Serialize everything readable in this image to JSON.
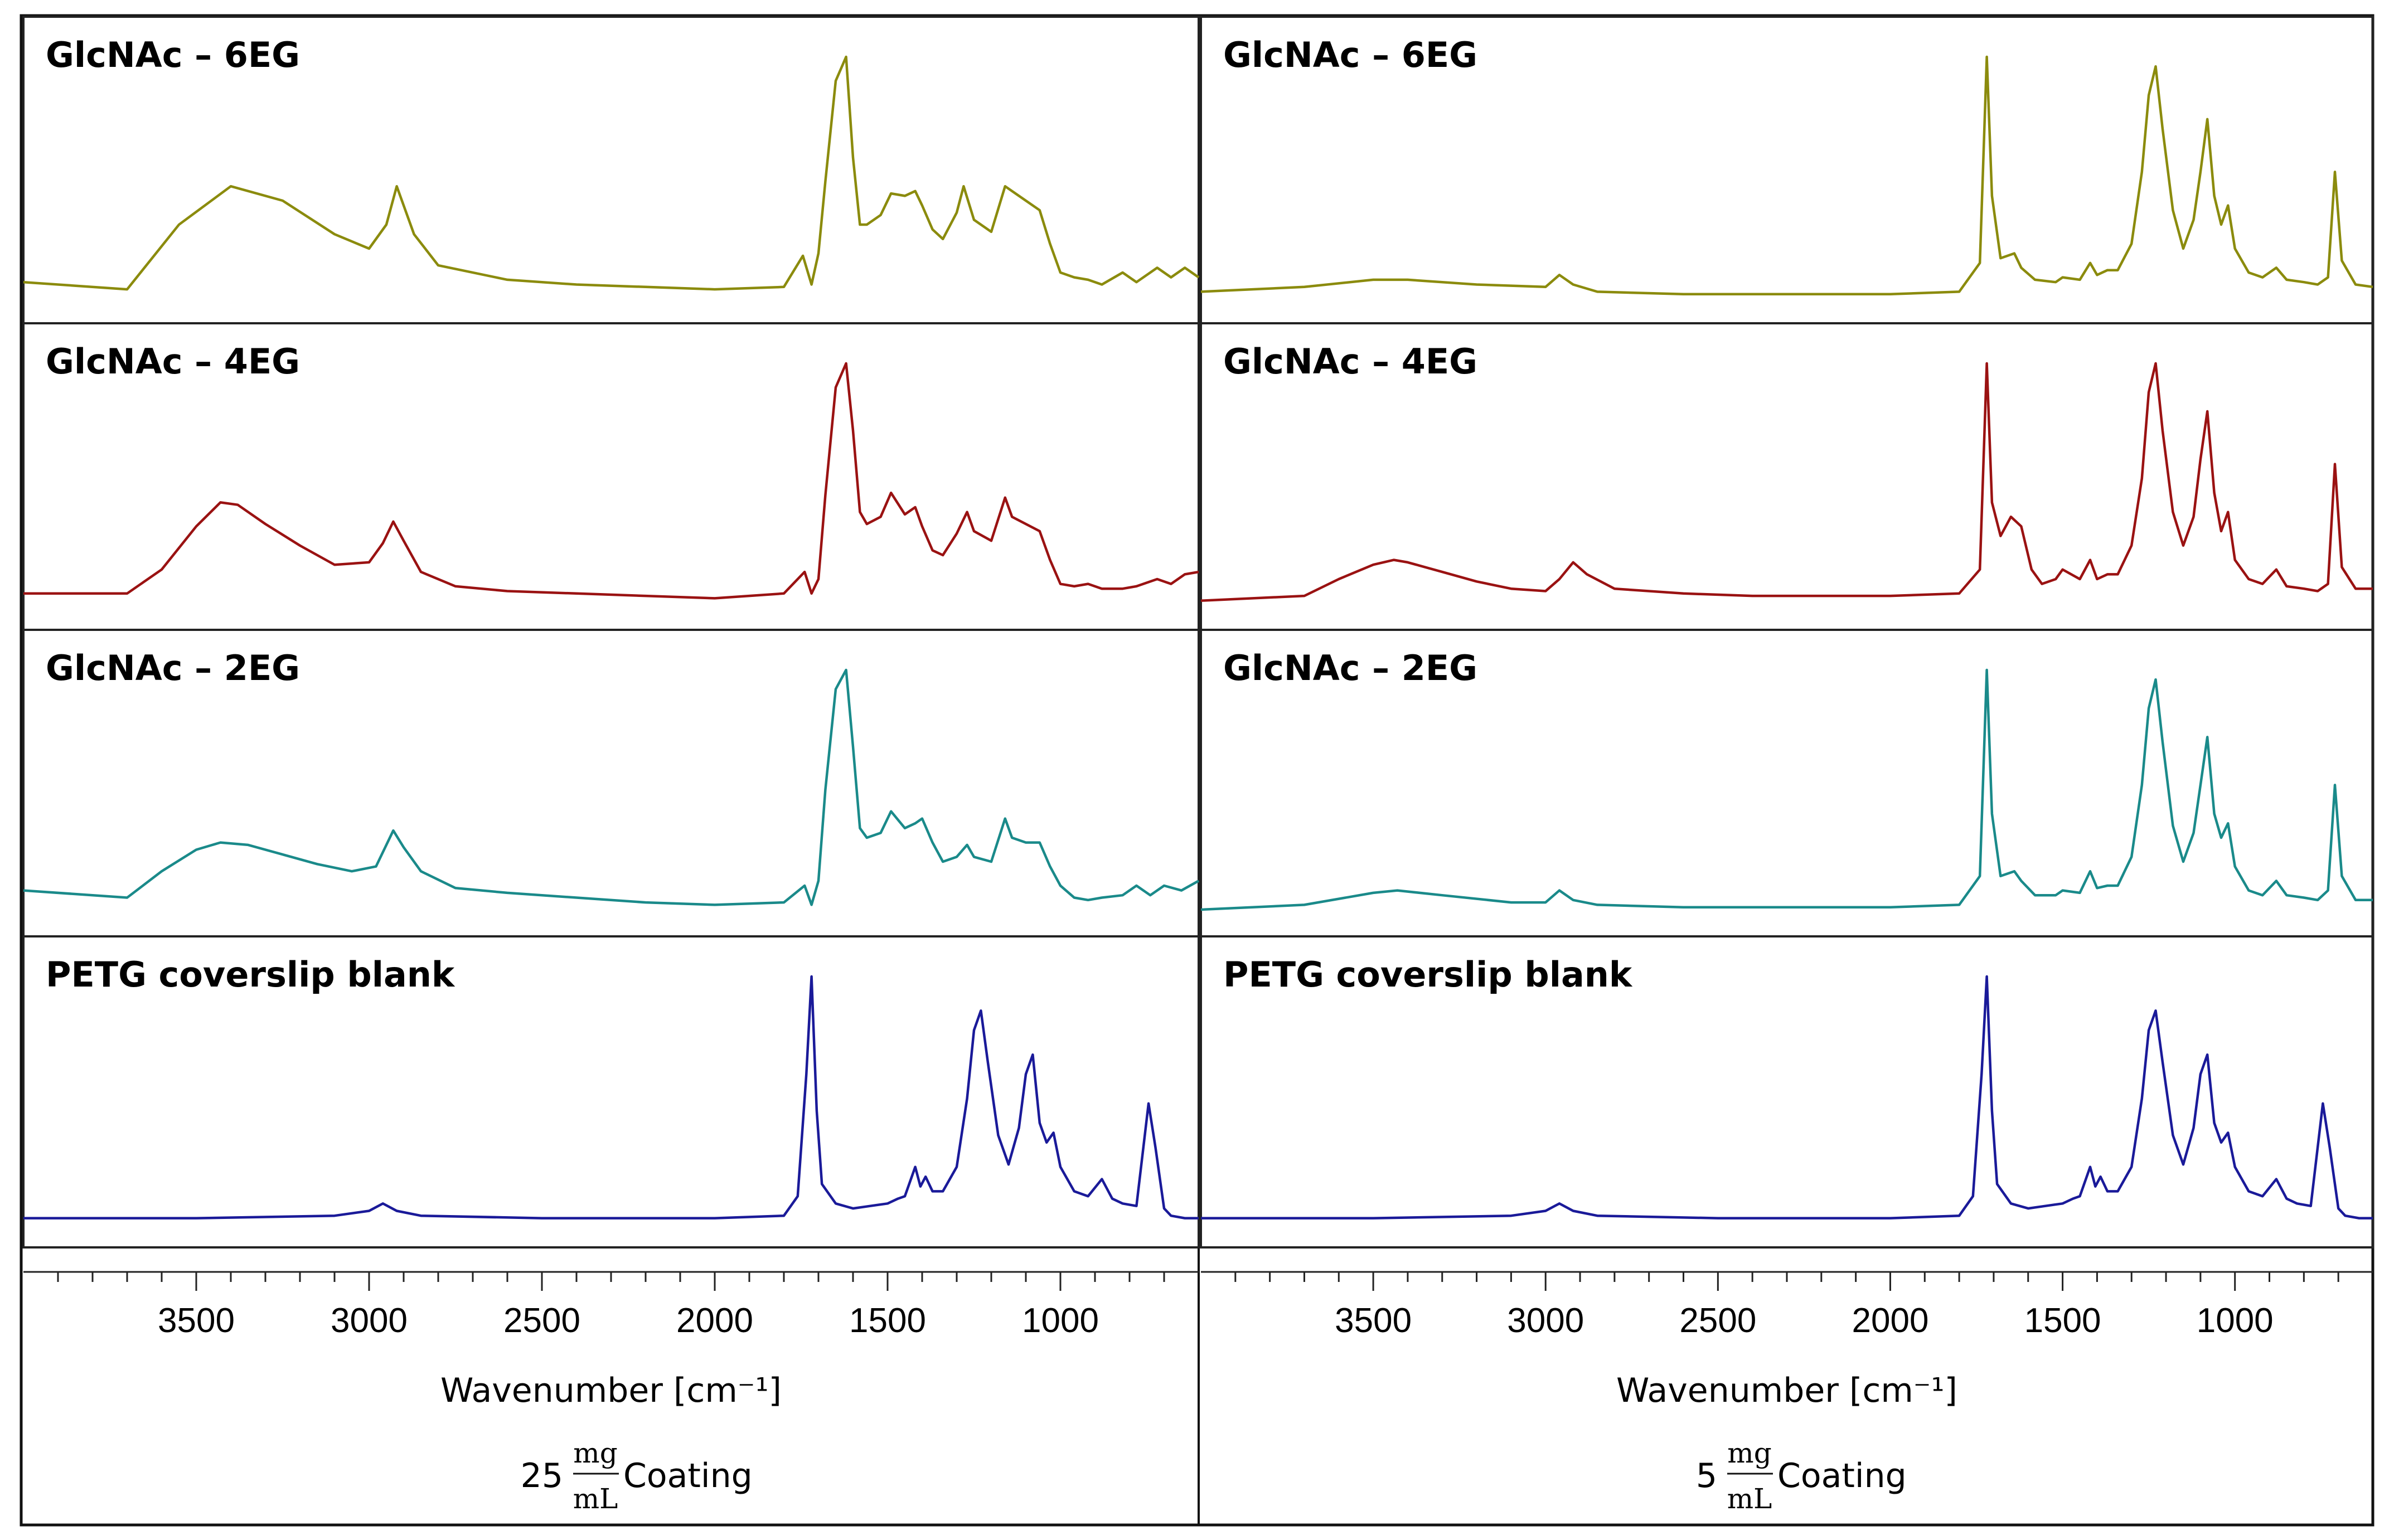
{
  "chart_data": [
    {
      "type": "line",
      "coating": "25 mg/mL Coating",
      "coating_value": "25",
      "coating_unit_top": "mg",
      "coating_unit_bottom": "mL",
      "coating_word": "Coating",
      "xlabel": "Wavenumber [cm⁻¹]",
      "xlim": [
        4000,
        600
      ],
      "x_reversed": true,
      "xticks": [
        "3500",
        "3000",
        "2500",
        "2000",
        "1500",
        "1000"
      ],
      "ylabel": "",
      "panels": [
        {
          "label": "GlcNAc – 6EG",
          "color": "#8b8b0d",
          "x": [
            4000,
            3700,
            3550,
            3400,
            3250,
            3100,
            3000,
            2950,
            2920,
            2870,
            2800,
            2600,
            2400,
            2200,
            2000,
            1800,
            1745,
            1720,
            1700,
            1680,
            1650,
            1620,
            1600,
            1580,
            1560,
            1520,
            1490,
            1450,
            1420,
            1400,
            1370,
            1340,
            1300,
            1280,
            1250,
            1200,
            1160,
            1130,
            1100,
            1060,
            1030,
            1000,
            960,
            920,
            880,
            820,
            780,
            720,
            680,
            640,
            600
          ],
          "y": [
            0.06,
            0.03,
            0.3,
            0.46,
            0.4,
            0.26,
            0.2,
            0.3,
            0.46,
            0.26,
            0.13,
            0.07,
            0.05,
            0.04,
            0.03,
            0.04,
            0.17,
            0.05,
            0.18,
            0.48,
            0.9,
            1.0,
            0.58,
            0.3,
            0.3,
            0.34,
            0.43,
            0.42,
            0.44,
            0.38,
            0.28,
            0.24,
            0.35,
            0.46,
            0.32,
            0.27,
            0.46,
            0.43,
            0.4,
            0.36,
            0.22,
            0.1,
            0.08,
            0.07,
            0.05,
            0.1,
            0.06,
            0.12,
            0.08,
            0.12,
            0.08
          ]
        },
        {
          "label": "GlcNAc – 4EG",
          "color": "#9a1212",
          "x": [
            4000,
            3700,
            3600,
            3500,
            3430,
            3380,
            3300,
            3200,
            3100,
            3000,
            2960,
            2930,
            2900,
            2850,
            2750,
            2600,
            2400,
            2200,
            2000,
            1800,
            1740,
            1720,
            1700,
            1680,
            1650,
            1620,
            1600,
            1580,
            1560,
            1520,
            1490,
            1450,
            1420,
            1400,
            1370,
            1340,
            1300,
            1270,
            1250,
            1200,
            1160,
            1140,
            1100,
            1060,
            1030,
            1000,
            960,
            920,
            880,
            820,
            780,
            720,
            680,
            640,
            600
          ],
          "y": [
            0.04,
            0.04,
            0.14,
            0.32,
            0.42,
            0.41,
            0.33,
            0.24,
            0.16,
            0.17,
            0.25,
            0.34,
            0.26,
            0.13,
            0.07,
            0.05,
            0.04,
            0.03,
            0.02,
            0.04,
            0.13,
            0.04,
            0.1,
            0.45,
            0.9,
            1.0,
            0.72,
            0.38,
            0.33,
            0.36,
            0.46,
            0.37,
            0.4,
            0.32,
            0.22,
            0.2,
            0.29,
            0.38,
            0.3,
            0.26,
            0.44,
            0.36,
            0.33,
            0.3,
            0.18,
            0.08,
            0.07,
            0.08,
            0.06,
            0.06,
            0.07,
            0.1,
            0.08,
            0.12,
            0.13
          ]
        },
        {
          "label": "GlcNAc – 2EG",
          "color": "#1a8a8a",
          "x": [
            4000,
            3700,
            3600,
            3500,
            3430,
            3350,
            3250,
            3150,
            3050,
            2980,
            2930,
            2900,
            2850,
            2750,
            2600,
            2400,
            2200,
            2000,
            1800,
            1740,
            1720,
            1700,
            1680,
            1650,
            1620,
            1600,
            1580,
            1560,
            1520,
            1490,
            1450,
            1420,
            1400,
            1370,
            1340,
            1300,
            1270,
            1250,
            1200,
            1160,
            1140,
            1100,
            1060,
            1030,
            1000,
            960,
            920,
            880,
            820,
            780,
            740,
            700,
            650,
            600
          ],
          "y": [
            0.08,
            0.05,
            0.16,
            0.25,
            0.28,
            0.27,
            0.23,
            0.19,
            0.16,
            0.18,
            0.33,
            0.26,
            0.16,
            0.09,
            0.07,
            0.05,
            0.03,
            0.02,
            0.03,
            0.1,
            0.02,
            0.12,
            0.5,
            0.92,
            1.0,
            0.68,
            0.34,
            0.3,
            0.32,
            0.41,
            0.34,
            0.36,
            0.38,
            0.28,
            0.2,
            0.22,
            0.27,
            0.22,
            0.2,
            0.38,
            0.3,
            0.28,
            0.28,
            0.18,
            0.1,
            0.05,
            0.04,
            0.05,
            0.06,
            0.1,
            0.06,
            0.1,
            0.08,
            0.12
          ]
        },
        {
          "label": "PETG coverslip blank",
          "color": "#1a1a99",
          "x": [
            4000,
            3500,
            3100,
            3000,
            2960,
            2920,
            2850,
            2500,
            2000,
            1800,
            1760,
            1735,
            1720,
            1705,
            1690,
            1650,
            1600,
            1550,
            1500,
            1470,
            1450,
            1420,
            1405,
            1390,
            1370,
            1340,
            1300,
            1270,
            1250,
            1230,
            1210,
            1180,
            1150,
            1120,
            1100,
            1080,
            1060,
            1040,
            1020,
            1000,
            960,
            920,
            880,
            850,
            820,
            780,
            745,
            725,
            700,
            680,
            640,
            600
          ],
          "y": [
            0.01,
            0.01,
            0.02,
            0.04,
            0.07,
            0.04,
            0.02,
            0.01,
            0.01,
            0.02,
            0.1,
            0.6,
            1.0,
            0.45,
            0.15,
            0.07,
            0.05,
            0.06,
            0.07,
            0.09,
            0.1,
            0.22,
            0.14,
            0.18,
            0.12,
            0.12,
            0.22,
            0.5,
            0.78,
            0.86,
            0.65,
            0.35,
            0.23,
            0.38,
            0.6,
            0.68,
            0.4,
            0.32,
            0.36,
            0.22,
            0.12,
            0.1,
            0.17,
            0.09,
            0.07,
            0.06,
            0.48,
            0.3,
            0.05,
            0.02,
            0.01,
            0.01
          ]
        }
      ]
    },
    {
      "type": "line",
      "coating": "5 mg/mL Coating",
      "coating_value": "5",
      "coating_unit_top": "mg",
      "coating_unit_bottom": "mL",
      "coating_word": "Coating",
      "xlabel": "Wavenumber [cm⁻¹]",
      "xlim": [
        4000,
        600
      ],
      "x_reversed": true,
      "xticks": [
        "3500",
        "3000",
        "2500",
        "2000",
        "1500",
        "1000"
      ],
      "ylabel": "",
      "panels": [
        {
          "label": "GlcNAc – 6EG",
          "color": "#8b8b0d",
          "x": [
            4000,
            3700,
            3500,
            3400,
            3200,
            3000,
            2960,
            2920,
            2850,
            2600,
            2400,
            2000,
            1800,
            1740,
            1720,
            1705,
            1680,
            1640,
            1620,
            1580,
            1520,
            1500,
            1450,
            1420,
            1400,
            1370,
            1340,
            1300,
            1270,
            1250,
            1230,
            1210,
            1180,
            1150,
            1120,
            1100,
            1080,
            1060,
            1040,
            1020,
            1000,
            960,
            920,
            880,
            850,
            800,
            760,
            730,
            710,
            690,
            650,
            600
          ],
          "y": [
            0.02,
            0.04,
            0.07,
            0.07,
            0.05,
            0.04,
            0.09,
            0.05,
            0.02,
            0.01,
            0.01,
            0.01,
            0.02,
            0.14,
            1.0,
            0.42,
            0.16,
            0.18,
            0.12,
            0.07,
            0.06,
            0.08,
            0.07,
            0.14,
            0.09,
            0.11,
            0.11,
            0.22,
            0.52,
            0.84,
            0.96,
            0.7,
            0.36,
            0.2,
            0.32,
            0.52,
            0.74,
            0.42,
            0.3,
            0.38,
            0.2,
            0.1,
            0.08,
            0.12,
            0.07,
            0.06,
            0.05,
            0.08,
            0.52,
            0.15,
            0.05,
            0.04
          ]
        },
        {
          "label": "GlcNAc – 4EG",
          "color": "#9a1212",
          "x": [
            4000,
            3700,
            3600,
            3500,
            3440,
            3400,
            3300,
            3200,
            3100,
            3000,
            2960,
            2920,
            2880,
            2800,
            2600,
            2400,
            2000,
            1800,
            1740,
            1720,
            1705,
            1680,
            1650,
            1620,
            1590,
            1560,
            1520,
            1500,
            1450,
            1420,
            1400,
            1370,
            1340,
            1300,
            1270,
            1250,
            1230,
            1210,
            1180,
            1150,
            1120,
            1100,
            1080,
            1060,
            1040,
            1020,
            1000,
            960,
            920,
            880,
            850,
            800,
            760,
            730,
            710,
            690,
            650,
            600
          ],
          "y": [
            0.01,
            0.03,
            0.1,
            0.16,
            0.18,
            0.17,
            0.13,
            0.09,
            0.06,
            0.05,
            0.1,
            0.17,
            0.12,
            0.06,
            0.04,
            0.03,
            0.03,
            0.04,
            0.14,
            1.0,
            0.42,
            0.28,
            0.36,
            0.32,
            0.14,
            0.08,
            0.1,
            0.14,
            0.1,
            0.18,
            0.1,
            0.12,
            0.12,
            0.24,
            0.52,
            0.88,
            1.0,
            0.72,
            0.38,
            0.24,
            0.36,
            0.6,
            0.8,
            0.46,
            0.3,
            0.38,
            0.18,
            0.1,
            0.08,
            0.14,
            0.07,
            0.06,
            0.05,
            0.08,
            0.58,
            0.15,
            0.06,
            0.06
          ]
        },
        {
          "label": "GlcNAc – 2EG",
          "color": "#1a8a8a",
          "x": [
            4000,
            3700,
            3500,
            3430,
            3300,
            3100,
            3000,
            2960,
            2920,
            2850,
            2600,
            2400,
            2000,
            1800,
            1740,
            1720,
            1705,
            1680,
            1640,
            1620,
            1580,
            1520,
            1500,
            1450,
            1420,
            1400,
            1370,
            1340,
            1300,
            1270,
            1250,
            1230,
            1210,
            1180,
            1150,
            1120,
            1100,
            1080,
            1060,
            1040,
            1020,
            1000,
            960,
            920,
            880,
            850,
            800,
            760,
            730,
            710,
            690,
            650,
            600
          ],
          "y": [
            0.0,
            0.02,
            0.07,
            0.08,
            0.06,
            0.03,
            0.03,
            0.08,
            0.04,
            0.02,
            0.01,
            0.01,
            0.01,
            0.02,
            0.14,
            1.0,
            0.4,
            0.14,
            0.16,
            0.12,
            0.06,
            0.06,
            0.08,
            0.07,
            0.16,
            0.09,
            0.1,
            0.1,
            0.22,
            0.52,
            0.84,
            0.96,
            0.7,
            0.35,
            0.2,
            0.32,
            0.52,
            0.72,
            0.4,
            0.3,
            0.36,
            0.18,
            0.08,
            0.06,
            0.12,
            0.06,
            0.05,
            0.04,
            0.08,
            0.52,
            0.14,
            0.04,
            0.04
          ]
        },
        {
          "label": "PETG coverslip blank",
          "color": "#1a1a99",
          "x": [
            4000,
            3500,
            3100,
            3000,
            2960,
            2920,
            2850,
            2500,
            2000,
            1800,
            1760,
            1735,
            1720,
            1705,
            1690,
            1650,
            1600,
            1550,
            1500,
            1470,
            1450,
            1420,
            1405,
            1390,
            1370,
            1340,
            1300,
            1270,
            1250,
            1230,
            1210,
            1180,
            1150,
            1120,
            1100,
            1080,
            1060,
            1040,
            1020,
            1000,
            960,
            920,
            880,
            850,
            820,
            780,
            745,
            725,
            700,
            680,
            640,
            600
          ],
          "y": [
            0.01,
            0.01,
            0.02,
            0.04,
            0.07,
            0.04,
            0.02,
            0.01,
            0.01,
            0.02,
            0.1,
            0.6,
            1.0,
            0.45,
            0.15,
            0.07,
            0.05,
            0.06,
            0.07,
            0.09,
            0.1,
            0.22,
            0.14,
            0.18,
            0.12,
            0.12,
            0.22,
            0.5,
            0.78,
            0.86,
            0.65,
            0.35,
            0.23,
            0.38,
            0.6,
            0.68,
            0.4,
            0.32,
            0.36,
            0.22,
            0.12,
            0.1,
            0.17,
            0.09,
            0.07,
            0.06,
            0.48,
            0.3,
            0.05,
            0.02,
            0.01,
            0.01
          ]
        }
      ]
    }
  ]
}
